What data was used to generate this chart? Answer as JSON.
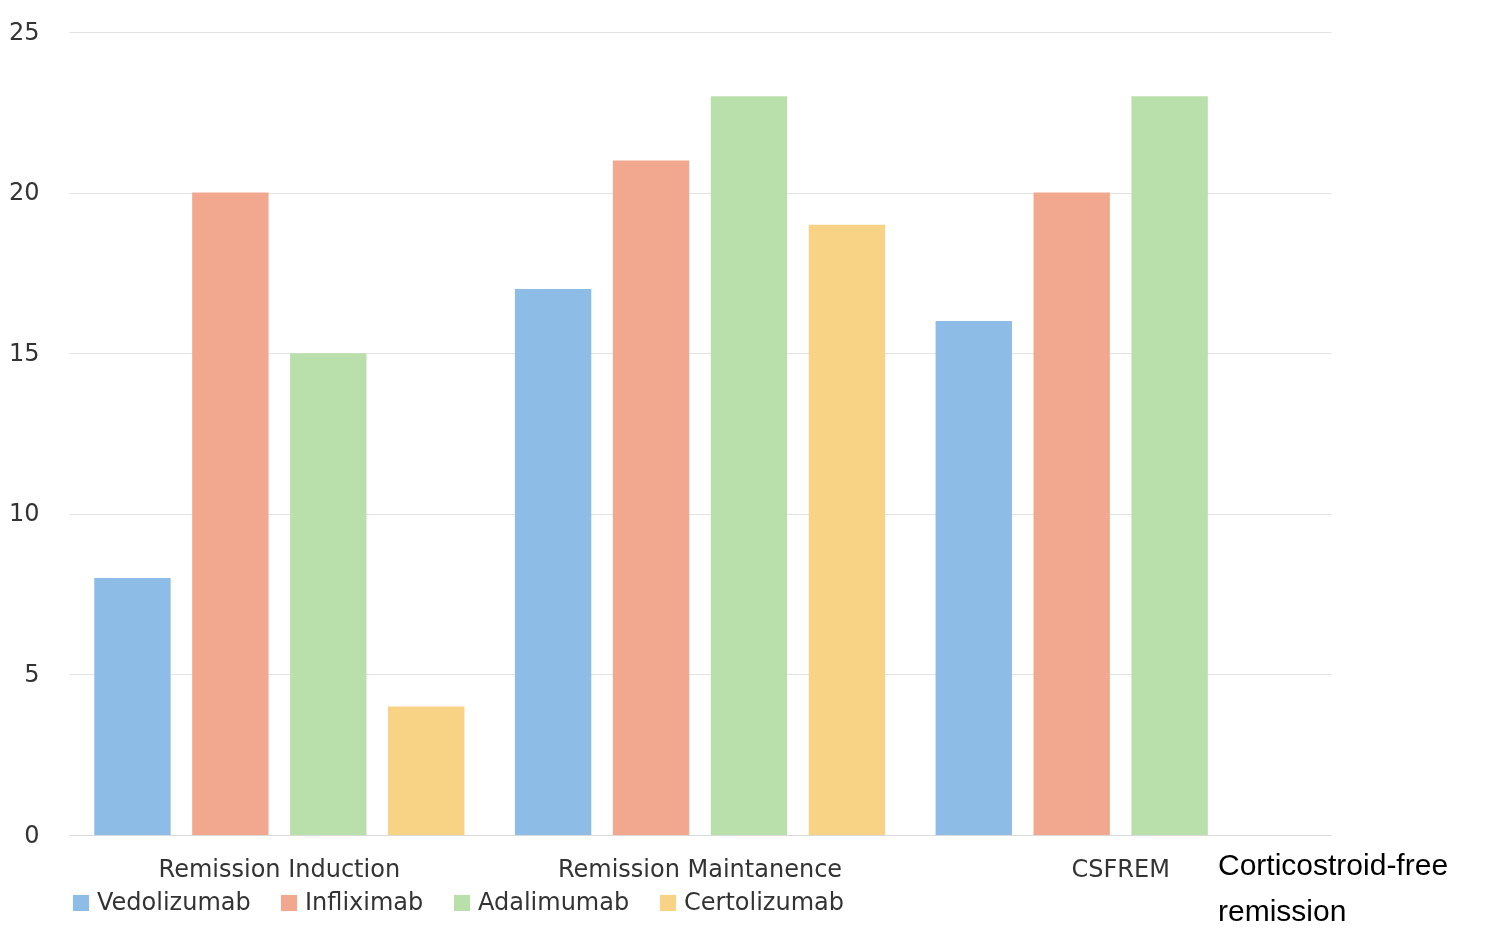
{
  "chart_data": {
    "type": "bar",
    "categories": [
      "Remission Induction",
      "Remission Maintanence",
      "CSFREM"
    ],
    "series": [
      {
        "name": "Vedolizumab",
        "color": "#8dbde6",
        "values": [
          8,
          17,
          16
        ]
      },
      {
        "name": "Infliximab",
        "color": "#f2a88e",
        "values": [
          20,
          21,
          20
        ]
      },
      {
        "name": "Adalimumab",
        "color": "#b9dfab",
        "values": [
          15,
          23,
          23
        ]
      },
      {
        "name": "Certolizumab",
        "color": "#f8d386",
        "values": [
          4,
          19,
          null
        ]
      }
    ],
    "ylim": [
      0,
      25
    ],
    "yticks": [
      0,
      5,
      10,
      15,
      20,
      25
    ],
    "grid": "y",
    "legend": "bottom",
    "annotations": [
      "Corticostroid-free remission"
    ]
  }
}
